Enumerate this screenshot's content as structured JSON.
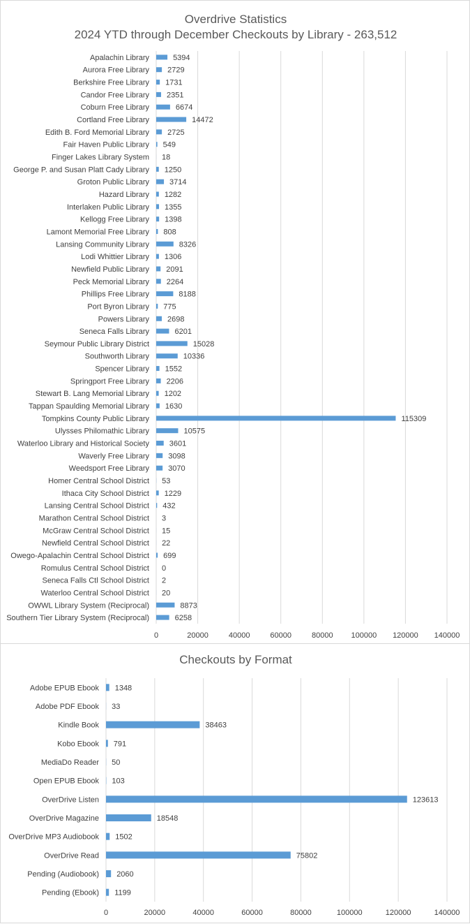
{
  "colors": {
    "bar": "#5b9bd5",
    "grid": "#d9d9d9",
    "text": "#404040",
    "title": "#595959"
  },
  "chart_data": [
    {
      "type": "bar",
      "orientation": "horizontal",
      "title": "Overdrive Statistics",
      "subtitle": "2024 YTD through December Checkouts by Library - 263,512",
      "xlim": [
        0,
        140000
      ],
      "xticks": [
        "0",
        "20000",
        "40000",
        "60000",
        "80000",
        "100000",
        "120000",
        "140000"
      ],
      "grid": true,
      "data_labels": true,
      "categories": [
        "Apalachin Library",
        "Aurora Free Library",
        "Berkshire Free Library",
        "Candor Free Library",
        "Coburn Free Library",
        "Cortland Free Library",
        "Edith B. Ford Memorial Library",
        "Fair Haven Public Library",
        "Finger Lakes Library System",
        "George P. and Susan Platt Cady Library",
        "Groton Public Library",
        "Hazard Library",
        "Interlaken Public Library",
        "Kellogg Free Library",
        "Lamont Memorial Free Library",
        "Lansing Community Library",
        "Lodi Whittier Library",
        "Newfield Public Library",
        "Peck Memorial Library",
        "Phillips Free Library",
        "Port Byron Library",
        "Powers Library",
        "Seneca Falls Library",
        "Seymour Public Library District",
        "Southworth Library",
        "Spencer Library",
        "Springport Free Library",
        "Stewart B. Lang Memorial Library",
        "Tappan Spaulding Memorial Library",
        "Tompkins County Public Library",
        "Ulysses Philomathic Library",
        "Waterloo Library and Historical Society",
        "Waverly Free Library",
        "Weedsport Free Library",
        "Homer Central School District",
        "Ithaca City School District",
        "Lansing Central School District",
        "Marathon Central School District",
        "McGraw Central School District",
        "Newfield Central School District",
        "Owego-Apalachin Central School District",
        "Romulus Central School District",
        "Seneca Falls Ctl School District",
        "Waterloo Central School District",
        "OWWL Library System (Reciprocal)",
        "Southern Tier Library System (Reciprocal)"
      ],
      "values": [
        5394,
        2729,
        1731,
        2351,
        6674,
        14472,
        2725,
        549,
        18,
        1250,
        3714,
        1282,
        1355,
        1398,
        808,
        8326,
        1306,
        2091,
        2264,
        8188,
        775,
        2698,
        6201,
        15028,
        10336,
        1552,
        2206,
        1202,
        1630,
        115309,
        10575,
        3601,
        3098,
        3070,
        53,
        1229,
        432,
        3,
        15,
        22,
        699,
        0,
        2,
        20,
        8873,
        6258
      ]
    },
    {
      "type": "bar",
      "orientation": "horizontal",
      "title": "Checkouts by Format",
      "xlim": [
        0,
        140000
      ],
      "xticks": [
        "0",
        "20000",
        "40000",
        "60000",
        "80000",
        "100000",
        "120000",
        "140000"
      ],
      "grid": true,
      "data_labels": true,
      "categories": [
        "Adobe EPUB Ebook",
        "Adobe PDF Ebook",
        "Kindle Book",
        "Kobo Ebook",
        "MediaDo Reader",
        "Open EPUB Ebook",
        "OverDrive Listen",
        "OverDrive Magazine",
        "OverDrive MP3 Audiobook",
        "OverDrive Read",
        "Pending (Audiobook)",
        "Pending (Ebook)"
      ],
      "values": [
        1348,
        33,
        38463,
        791,
        50,
        103,
        123613,
        18548,
        1502,
        75802,
        2060,
        1199
      ]
    }
  ]
}
